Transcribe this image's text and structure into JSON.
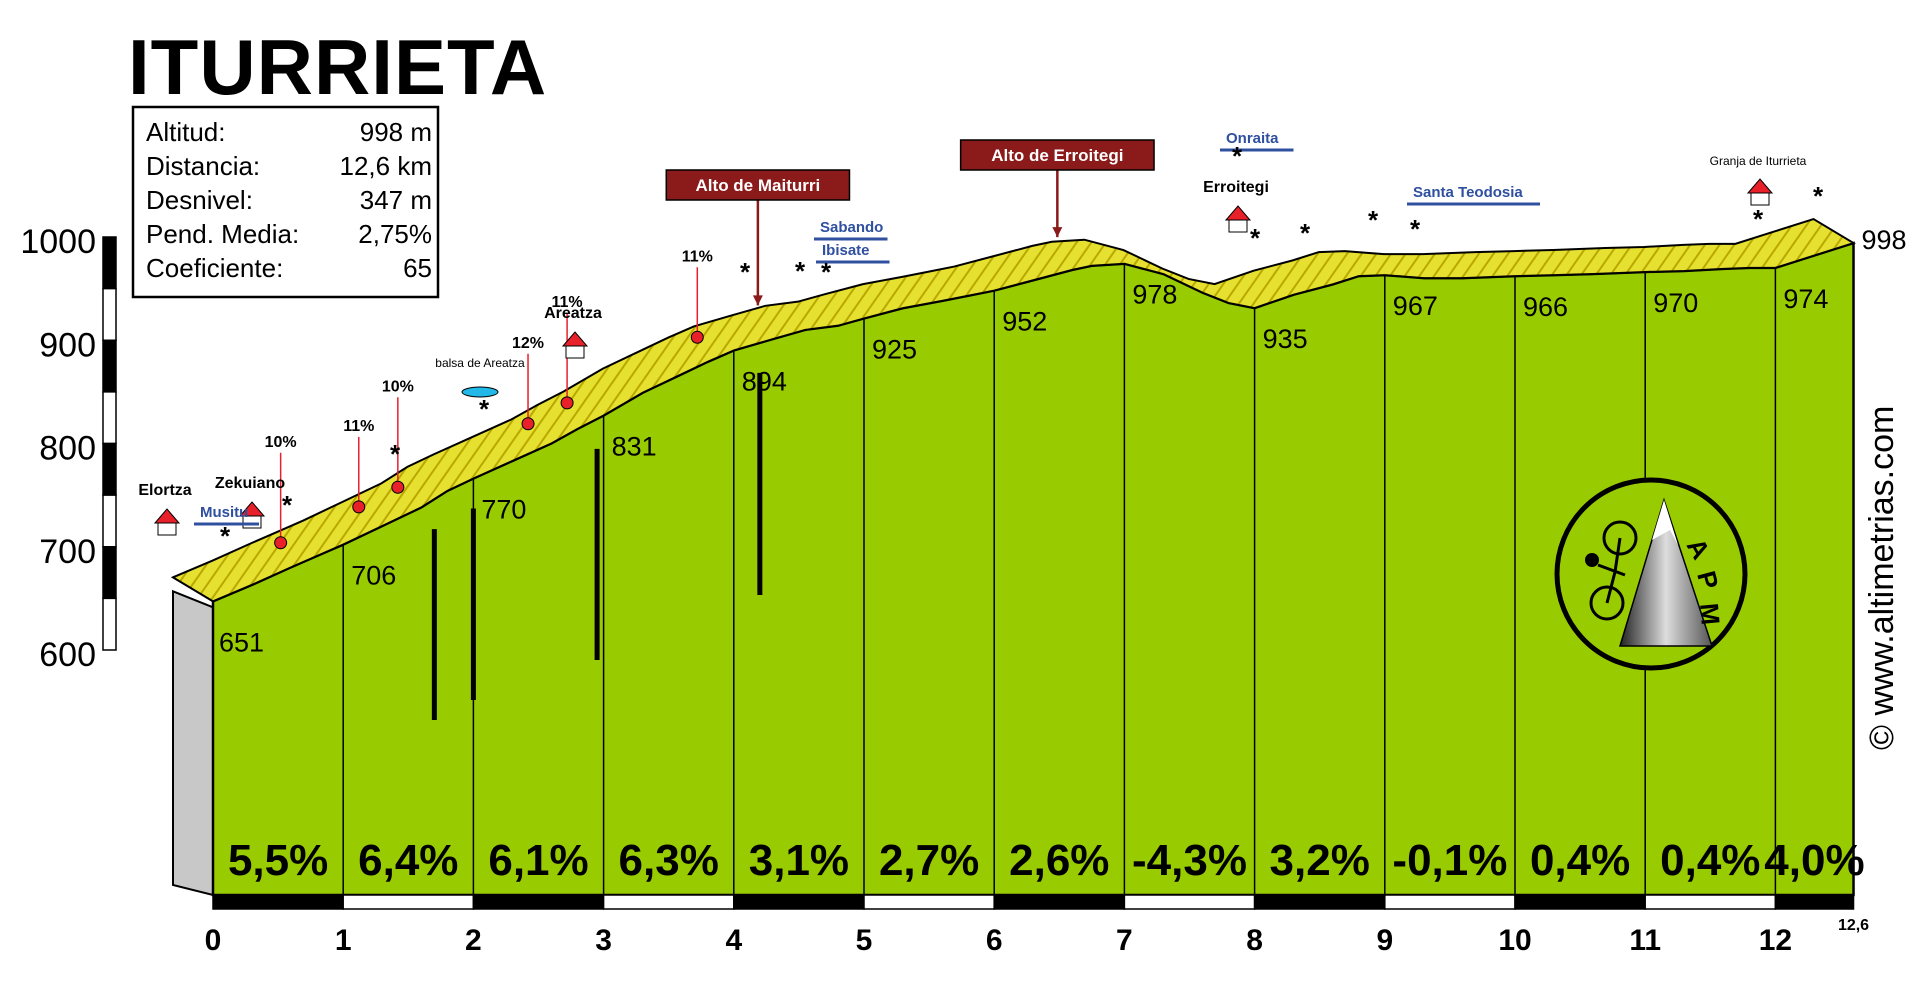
{
  "chart_data": {
    "type": "area",
    "title": "ITURRIETA",
    "stats": [
      {
        "label": "Altitud:",
        "value": "998 m"
      },
      {
        "label": "Distancia:",
        "value": "12,6 km"
      },
      {
        "label": "Desnivel:",
        "value": "347 m"
      },
      {
        "label": "Pend. Media:",
        "value": "2,75%"
      },
      {
        "label": "Coeficiente:",
        "value": "65"
      }
    ],
    "xlabel": "",
    "ylabel": "",
    "x_unit": "km",
    "y_unit": "m",
    "xlim": [
      0,
      12.6
    ],
    "ylim": [
      600,
      1000
    ],
    "y_ticks": [
      "600",
      "700",
      "800",
      "900",
      "1000"
    ],
    "x_ticks": [
      "0",
      "1",
      "2",
      "3",
      "4",
      "5",
      "6",
      "7",
      "8",
      "9",
      "10",
      "11",
      "12"
    ],
    "x_end_label": "12,6",
    "km_elevations": [
      {
        "x": 0,
        "y": 651,
        "label": "651"
      },
      {
        "x": 1,
        "y": 706,
        "label": "706"
      },
      {
        "x": 2,
        "y": 770,
        "label": "770"
      },
      {
        "x": 3,
        "y": 831,
        "label": "831"
      },
      {
        "x": 4,
        "y": 894,
        "label": "894"
      },
      {
        "x": 5,
        "y": 925,
        "label": "925"
      },
      {
        "x": 6,
        "y": 952,
        "label": "952"
      },
      {
        "x": 7,
        "y": 978,
        "label": "978"
      },
      {
        "x": 8,
        "y": 935,
        "label": "935"
      },
      {
        "x": 9,
        "y": 967,
        "label": "967"
      },
      {
        "x": 10,
        "y": 966,
        "label": "966"
      },
      {
        "x": 11,
        "y": 970,
        "label": "970"
      },
      {
        "x": 12,
        "y": 974,
        "label": "974"
      },
      {
        "x": 12.6,
        "y": 998,
        "label": "998"
      }
    ],
    "segment_gradients": [
      "5,5%",
      "6,4%",
      "6,1%",
      "6,3%",
      "3,1%",
      "2,7%",
      "2,6%",
      "-4,3%",
      "3,2%",
      "-0,1%",
      "0,4%",
      "0,4%",
      "4,0%"
    ],
    "profile": [
      [
        0,
        651
      ],
      [
        0.3,
        667
      ],
      [
        0.6,
        684
      ],
      [
        0.8,
        695
      ],
      [
        1,
        706
      ],
      [
        1.3,
        724
      ],
      [
        1.6,
        742
      ],
      [
        1.8,
        758
      ],
      [
        2,
        770
      ],
      [
        2.3,
        787
      ],
      [
        2.6,
        804
      ],
      [
        2.8,
        818
      ],
      [
        3,
        831
      ],
      [
        3.3,
        853
      ],
      [
        3.6,
        871
      ],
      [
        3.8,
        883
      ],
      [
        4,
        894
      ],
      [
        4.3,
        905
      ],
      [
        4.55,
        914
      ],
      [
        4.8,
        918
      ],
      [
        5,
        925
      ],
      [
        5.3,
        935
      ],
      [
        5.6,
        942
      ],
      [
        5.8,
        947
      ],
      [
        6,
        952
      ],
      [
        6.3,
        962
      ],
      [
        6.6,
        972
      ],
      [
        6.75,
        976
      ],
      [
        7,
        978
      ],
      [
        7.3,
        968
      ],
      [
        7.6,
        950
      ],
      [
        7.8,
        940
      ],
      [
        8,
        935
      ],
      [
        8.3,
        948
      ],
      [
        8.6,
        958
      ],
      [
        8.8,
        966
      ],
      [
        9,
        967
      ],
      [
        9.3,
        964
      ],
      [
        9.6,
        964
      ],
      [
        9.8,
        965
      ],
      [
        10,
        966
      ],
      [
        10.3,
        967
      ],
      [
        10.6,
        968
      ],
      [
        10.8,
        969
      ],
      [
        11,
        970
      ],
      [
        11.3,
        971
      ],
      [
        11.6,
        973
      ],
      [
        11.8,
        974
      ],
      [
        12,
        974
      ],
      [
        12.3,
        986
      ],
      [
        12.6,
        998
      ]
    ],
    "steep_marks": [
      {
        "x": 0.75,
        "label": "10%"
      },
      {
        "x": 1.35,
        "label": "11%"
      },
      {
        "x": 1.65,
        "label": "10%"
      },
      {
        "x": 2.65,
        "label": "12%"
      },
      {
        "x": 2.95,
        "label": "11%"
      },
      {
        "x": 3.95,
        "label": "11%"
      }
    ],
    "passes": [
      {
        "x": 4.4,
        "name": "Alto de Maiturri"
      },
      {
        "x": 6.7,
        "name": "Alto de Erroitegi"
      }
    ],
    "places": [
      {
        "name": "Elortza",
        "x": -0.4
      },
      {
        "name": "Zekuiano",
        "x": 0.28
      },
      {
        "name": "Areatza",
        "x": 2.75
      },
      {
        "name": "Erroitegi",
        "x": 7.85
      },
      {
        "name": "Granja de Iturrieta",
        "x": 11.85
      }
    ],
    "small_labels": [
      {
        "text": "balsa de Areatza"
      }
    ],
    "branch_roads": [
      {
        "name": "Musitu"
      },
      {
        "name": "Sabando"
      },
      {
        "name": "Ibisate"
      },
      {
        "name": "Onraita"
      },
      {
        "name": "Santa Teodosia"
      }
    ],
    "colors": {
      "fill": "#99cc00",
      "band": "#e6e030",
      "band_dark": "#b8a800",
      "pass": "#8b1a1a",
      "marker": "#e8202a",
      "road": "#2f4f9f"
    }
  },
  "credit": "© www.altimetrias.com",
  "logo": {
    "text": "APM",
    "icon": "cyclist-mountain-logo"
  }
}
